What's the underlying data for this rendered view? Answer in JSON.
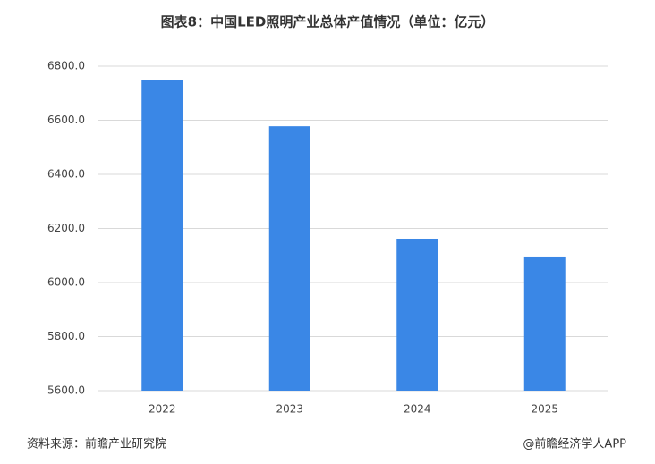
{
  "chart_data": {
    "type": "bar",
    "title": "图表8：中国LED照明产业总体产值情况（单位：亿元）",
    "categories": [
      "2022",
      "2023",
      "2024",
      "2025"
    ],
    "values": [
      6750,
      6578,
      6162,
      6096
    ],
    "color": "#3a87e6",
    "ylim": [
      5600,
      6800
    ],
    "yticks": [
      {
        "value": 5600,
        "label": "5600.0"
      },
      {
        "value": 5800,
        "label": "5800.0"
      },
      {
        "value": 6000,
        "label": "6000.0"
      },
      {
        "value": 6200,
        "label": "6200.0"
      },
      {
        "value": 6400,
        "label": "6400.0"
      },
      {
        "value": 6600,
        "label": "6600.0"
      },
      {
        "value": 6800,
        "label": "6800.0"
      }
    ],
    "grid": true,
    "source": "资料来源：前瞻产业研究院",
    "credit": "@前瞻经济学人APP"
  }
}
